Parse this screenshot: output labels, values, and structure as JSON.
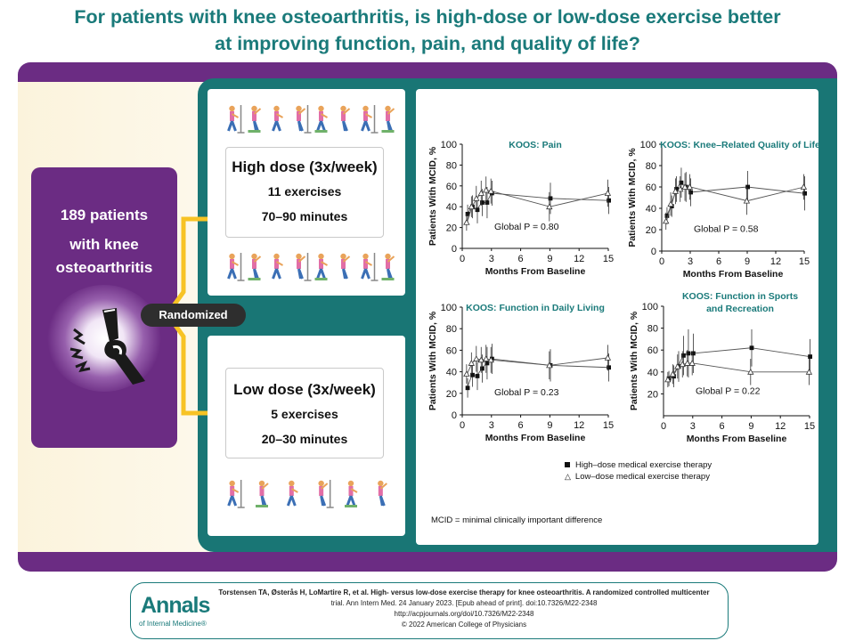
{
  "title_line1": "For patients with knee osteoarthritis, is high-dose or low-dose exercise better",
  "title_line2": "at improving function, pain, and quality of life?",
  "patients": {
    "line1": "189 patients",
    "line2": "with knee",
    "line3": "osteoarthritis"
  },
  "randomized_label": "Randomized",
  "high_dose": {
    "title": "High dose (3x/week)",
    "exercises": "11 exercises",
    "duration": "70–90 minutes"
  },
  "low_dose": {
    "title": "Low dose (3x/week)",
    "exercises": "5 exercises",
    "duration": "20–30 minutes"
  },
  "icons": {
    "knee": "knee-pain-icon",
    "exercise": "exercise-figure-icon"
  },
  "colors": {
    "teal": "#197675",
    "purple": "#6b2c83",
    "arrow": "#f7c325",
    "title": "#1a7a7a"
  },
  "legend": {
    "high": "High–dose medical exercise therapy",
    "low": "Low–dose medical exercise therapy"
  },
  "mcid_note": "MCID = minimal clinically important difference",
  "chart_data": [
    {
      "type": "line",
      "title": "KOOS: Pain",
      "xlabel": "Months From Baseline",
      "ylabel": "Patients With MCID, %",
      "xlim": [
        0,
        15
      ],
      "ylim": [
        0,
        100
      ],
      "xticks": [
        0,
        3,
        6,
        9,
        12,
        15
      ],
      "yticks": [
        0,
        20,
        40,
        60,
        80,
        100
      ],
      "annotation": "Global P = 0.80",
      "series": [
        {
          "name": "High–dose medical exercise therapy",
          "marker": "square",
          "x": [
            0.5,
            1,
            1.5,
            2,
            2.5,
            3,
            9,
            15
          ],
          "y": [
            33,
            40,
            37,
            44,
            44,
            53,
            48,
            46
          ],
          "err": [
            9,
            11,
            13,
            13,
            15,
            12,
            15,
            13
          ]
        },
        {
          "name": "Low–dose medical exercise therapy",
          "marker": "triangle",
          "x": [
            0.5,
            1,
            1.5,
            2,
            2.5,
            3,
            9,
            15
          ],
          "y": [
            25,
            40,
            48,
            53,
            56,
            55,
            40,
            53
          ],
          "err": [
            8,
            10,
            12,
            12,
            13,
            12,
            14,
            13
          ]
        }
      ]
    },
    {
      "type": "line",
      "title": "KOOS: Knee–Related Quality of Life",
      "xlabel": "Months From Baseline",
      "ylabel": "Patients With MCID, %",
      "xlim": [
        0,
        15
      ],
      "ylim": [
        0,
        100
      ],
      "xticks": [
        0,
        3,
        6,
        9,
        12,
        15
      ],
      "yticks": [
        0,
        20,
        40,
        60,
        80,
        100
      ],
      "annotation": "Global P = 0.58",
      "series": [
        {
          "name": "High–dose medical exercise therapy",
          "marker": "square",
          "x": [
            0.5,
            1,
            1.5,
            2,
            2.5,
            3,
            9,
            15
          ],
          "y": [
            33,
            42,
            58,
            64,
            60,
            55,
            60,
            54
          ],
          "err": [
            8,
            10,
            12,
            14,
            14,
            13,
            15,
            16
          ]
        },
        {
          "name": "Low–dose medical exercise therapy",
          "marker": "triangle",
          "x": [
            0.5,
            1,
            1.5,
            2,
            2.5,
            3,
            9,
            15
          ],
          "y": [
            28,
            44,
            56,
            58,
            60,
            60,
            47,
            60
          ],
          "err": [
            8,
            11,
            12,
            12,
            13,
            12,
            13,
            12
          ]
        }
      ]
    },
    {
      "type": "line",
      "title": "KOOS: Function in Daily Living",
      "xlabel": "Months From Baseline",
      "ylabel": "Patients With MCID, %",
      "xlim": [
        0,
        15
      ],
      "ylim": [
        0,
        100
      ],
      "xticks": [
        0,
        3,
        6,
        9,
        12,
        15
      ],
      "yticks": [
        0,
        20,
        40,
        60,
        80,
        100
      ],
      "annotation": "Global P = 0.23",
      "series": [
        {
          "name": "High–dose medical exercise therapy",
          "marker": "square",
          "x": [
            0.5,
            1,
            1.5,
            2,
            2.5,
            3,
            9,
            15
          ],
          "y": [
            25,
            37,
            36,
            43,
            48,
            52,
            46,
            44
          ],
          "err": [
            9,
            11,
            13,
            13,
            15,
            14,
            15,
            13
          ]
        },
        {
          "name": "Low–dose medical exercise therapy",
          "marker": "triangle",
          "x": [
            0.5,
            1,
            1.5,
            2,
            2.5,
            3,
            9,
            15
          ],
          "y": [
            38,
            48,
            52,
            51,
            52,
            51,
            46,
            53
          ],
          "err": [
            9,
            10,
            12,
            12,
            13,
            12,
            13,
            12
          ]
        }
      ]
    },
    {
      "type": "line",
      "title": "KOOS: Function in Sports and Recreation",
      "xlabel": "Months From Baseline",
      "ylabel": "Patients With MCID, %",
      "xlim": [
        0,
        15
      ],
      "ylim": [
        0,
        100
      ],
      "xticks": [
        0,
        3,
        6,
        9,
        12,
        15
      ],
      "yticks": [
        20,
        40,
        60,
        80,
        100
      ],
      "annotation": "Global P = 0.22",
      "series": [
        {
          "name": "High–dose medical exercise therapy",
          "marker": "square",
          "x": [
            0.5,
            1,
            1.5,
            2,
            2.5,
            3,
            9,
            15
          ],
          "y": [
            34,
            36,
            45,
            55,
            57,
            57,
            62,
            54
          ],
          "err": [
            7,
            10,
            14,
            18,
            22,
            18,
            17,
            16
          ]
        },
        {
          "name": "Low–dose medical exercise therapy",
          "marker": "triangle",
          "x": [
            0.5,
            1,
            1.5,
            2,
            2.5,
            3,
            9,
            15
          ],
          "y": [
            33,
            38,
            45,
            47,
            48,
            48,
            40,
            40
          ],
          "err": [
            7,
            9,
            11,
            12,
            12,
            11,
            12,
            12
          ]
        }
      ]
    }
  ],
  "footer": {
    "logo": "Annals",
    "logo_sub": "of Internal Medicine®",
    "citation1": "Torstensen TA, Østerås H, LoMartire R, et al. High- versus low-dose exercise therapy for knee osteoarthritis. A randomized controlled multicenter",
    "citation2": "trial. Ann Intern Med. 24 January 2023. [Epub ahead of print]. doi:10.7326/M22-2348",
    "citation3": "http://acpjournals.org/doi/10.7326/M22-2348",
    "copyright": "© 2022 American College of Physicians"
  }
}
